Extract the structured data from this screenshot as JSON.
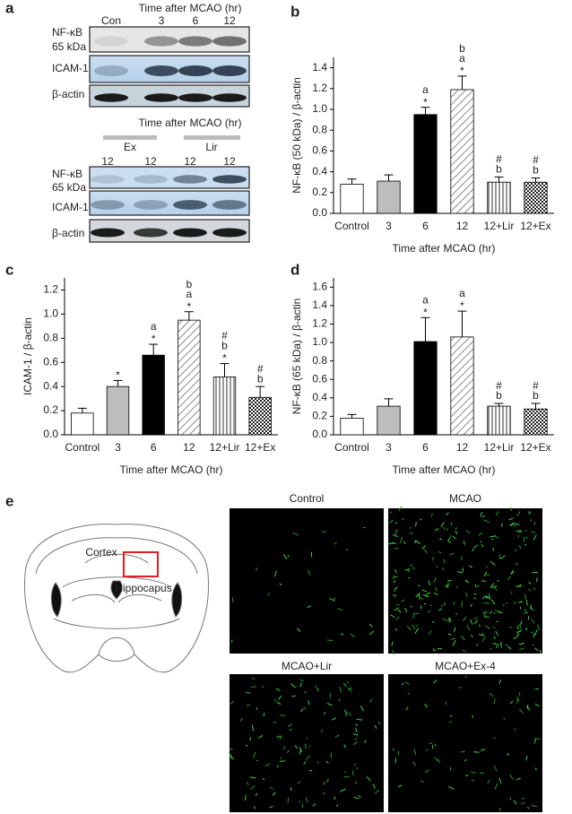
{
  "panel_a": {
    "label": "a",
    "top_blot": {
      "header": "Time after MCAO (hr)",
      "lanes": [
        "Con",
        "3",
        "6",
        "12"
      ],
      "rows": [
        "NF-κB",
        "65 kDa",
        "ICAM-1",
        "β-actin"
      ]
    },
    "bottom_blot": {
      "header": "Time after MCAO (hr)",
      "groups": [
        "Ex",
        "Lir"
      ],
      "lanes": [
        "12",
        "12",
        "12",
        "12"
      ],
      "rows": [
        "NF-κB",
        "65 kDa",
        "ICAM-1",
        "β-actin"
      ]
    }
  },
  "chart_data": [
    {
      "type": "bar",
      "panel_label": "b",
      "y_label": "NF-κB (50 kDa) / β-actin",
      "x_label": "Time after MCAO (hr)",
      "categories": [
        "Control",
        "3",
        "6",
        "12",
        "12+Lir",
        "12+Ex"
      ],
      "values": [
        0.28,
        0.31,
        0.95,
        1.19,
        0.3,
        0.3
      ],
      "errors": [
        0.05,
        0.06,
        0.07,
        0.13,
        0.05,
        0.04
      ],
      "annotations": [
        [],
        [],
        [
          "a",
          "*"
        ],
        [
          "b",
          "a",
          "*"
        ],
        [
          "#",
          "b"
        ],
        [
          "#",
          "b"
        ]
      ],
      "fills": [
        "#ffffff",
        "#bdbdbd",
        "#000000",
        "diag",
        "vert",
        "check"
      ],
      "ylim": [
        0,
        1.5
      ],
      "yticks": [
        {
          "value": 0,
          "label": "0.0"
        },
        {
          "value": 0.2,
          "label": "0.2"
        },
        {
          "value": 0.4,
          "label": "0.4"
        },
        {
          "value": 0.6,
          "label": "0.6"
        },
        {
          "value": 0.8,
          "label": "0.8"
        },
        {
          "value": 1,
          "label": "1.0"
        },
        {
          "value": 1.2,
          "label": "1.2"
        },
        {
          "value": 1.4,
          "label": "1.4"
        }
      ]
    },
    {
      "type": "bar",
      "panel_label": "c",
      "y_label": "ICAM-1 / β-actin",
      "x_label": "Time after MCAO (hr)",
      "categories": [
        "Control",
        "3",
        "6",
        "12",
        "12+Lir",
        "12+Ex"
      ],
      "values": [
        0.18,
        0.4,
        0.66,
        0.95,
        0.48,
        0.31
      ],
      "errors": [
        0.04,
        0.05,
        0.09,
        0.07,
        0.11,
        0.09
      ],
      "annotations": [
        [],
        [
          "*"
        ],
        [
          "a",
          "*"
        ],
        [
          "b",
          "a",
          "*"
        ],
        [
          "#",
          "b",
          "*"
        ],
        [
          "#",
          "b"
        ]
      ],
      "fills": [
        "#ffffff",
        "#bdbdbd",
        "#000000",
        "diag",
        "vert",
        "check"
      ],
      "ylim": [
        0,
        1.3
      ],
      "yticks": [
        {
          "value": 0,
          "label": "0.0"
        },
        {
          "value": 0.2,
          "label": "0.2"
        },
        {
          "value": 0.4,
          "label": "0.4"
        },
        {
          "value": 0.6,
          "label": "0.6"
        },
        {
          "value": 0.8,
          "label": "0.8"
        },
        {
          "value": 1,
          "label": "1.0"
        },
        {
          "value": 1.2,
          "label": "1.2"
        }
      ]
    },
    {
      "type": "bar",
      "panel_label": "d",
      "y_label": "NF-κB (65 kDa) / β-actin",
      "x_label": "Time after MCAO (hr)",
      "categories": [
        "Control",
        "3",
        "6",
        "12",
        "12+Lir",
        "12+Ex"
      ],
      "values": [
        0.18,
        0.31,
        1.01,
        1.06,
        0.31,
        0.28
      ],
      "errors": [
        0.04,
        0.08,
        0.26,
        0.28,
        0.03,
        0.06
      ],
      "annotations": [
        [],
        [],
        [
          "a",
          "*"
        ],
        [
          "a",
          "*"
        ],
        [
          "#",
          "b"
        ],
        [
          "#",
          "b"
        ]
      ],
      "fills": [
        "#ffffff",
        "#bdbdbd",
        "#000000",
        "diag",
        "vert",
        "check"
      ],
      "ylim": [
        0,
        1.7
      ],
      "yticks": [
        {
          "value": 0,
          "label": "0.0"
        },
        {
          "value": 0.2,
          "label": "0.2"
        },
        {
          "value": 0.4,
          "label": "0.4"
        },
        {
          "value": 0.6,
          "label": "0.6"
        },
        {
          "value": 0.8,
          "label": "0.8"
        },
        {
          "value": 1,
          "label": "1.0"
        },
        {
          "value": 1.2,
          "label": "1.2"
        },
        {
          "value": 1.4,
          "label": "1.4"
        },
        {
          "value": 1.6,
          "label": "1.6"
        }
      ]
    }
  ],
  "panel_e": {
    "label": "e",
    "diagram_labels": [
      "Cortex",
      "Hippocapus"
    ],
    "images": [
      "Control",
      "MCAO",
      "MCAO+Lir",
      "MCAO+Ex-4"
    ]
  }
}
